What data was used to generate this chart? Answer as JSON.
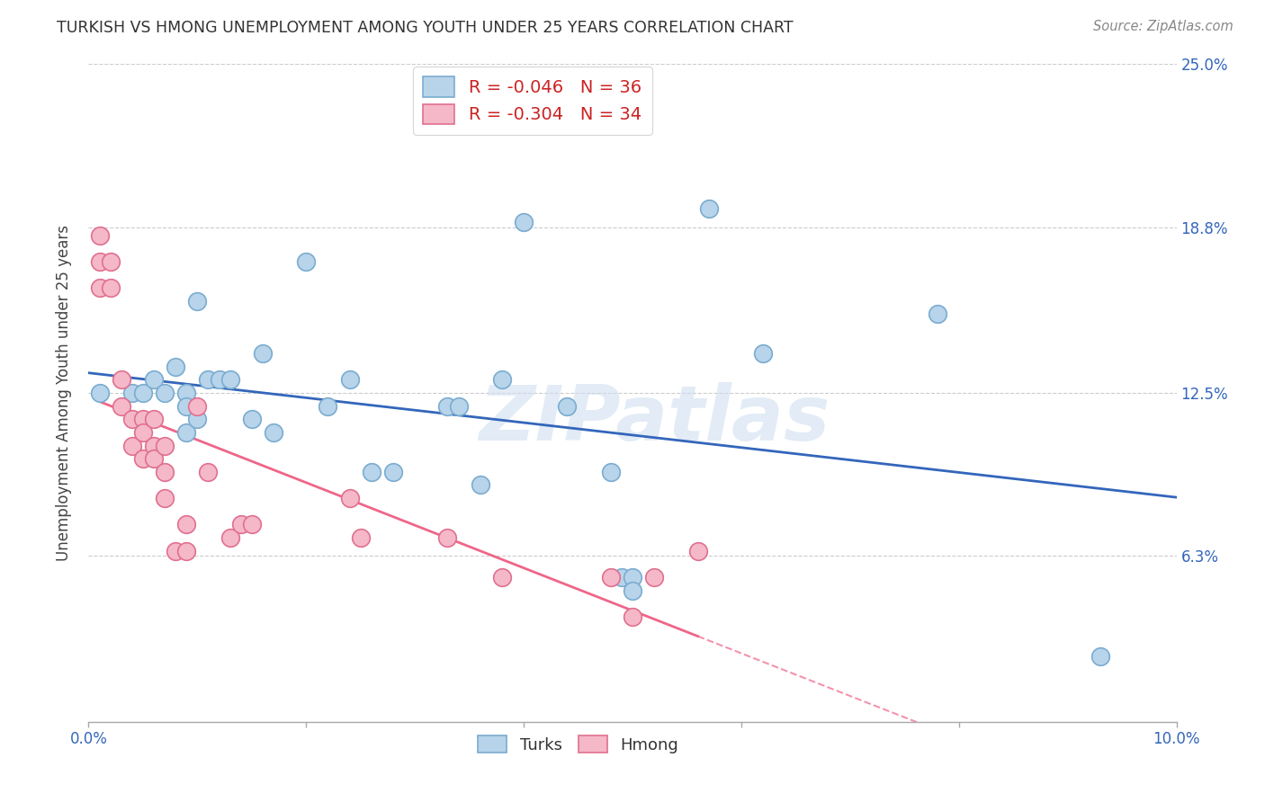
{
  "title": "TURKISH VS HMONG UNEMPLOYMENT AMONG YOUTH UNDER 25 YEARS CORRELATION CHART",
  "source": "Source: ZipAtlas.com",
  "ylabel": "Unemployment Among Youth under 25 years",
  "xlim": [
    0.0,
    0.1
  ],
  "ylim": [
    0.0,
    0.25
  ],
  "xtick_positions": [
    0.0,
    0.02,
    0.04,
    0.06,
    0.08,
    0.1
  ],
  "ytick_positions": [
    0.0,
    0.063,
    0.125,
    0.188,
    0.25
  ],
  "yticklabels_right": [
    "",
    "6.3%",
    "12.5%",
    "18.8%",
    "25.0%"
  ],
  "turks_R": "-0.046",
  "turks_N": "36",
  "hmong_R": "-0.304",
  "hmong_N": "34",
  "turks_color": "#b8d4ea",
  "turks_edge": "#7aacd0",
  "hmong_color": "#f5b8c8",
  "hmong_edge": "#e07090",
  "turks_line_color": "#3366bb",
  "hmong_line_color": "#ee6688",
  "watermark": "ZIPatlas",
  "turks_x": [
    0.001,
    0.004,
    0.005,
    0.006,
    0.007,
    0.008,
    0.009,
    0.009,
    0.009,
    0.01,
    0.01,
    0.011,
    0.012,
    0.013,
    0.015,
    0.016,
    0.017,
    0.02,
    0.022,
    0.024,
    0.026,
    0.028,
    0.033,
    0.034,
    0.036,
    0.038,
    0.04,
    0.044,
    0.048,
    0.049,
    0.05,
    0.05,
    0.057,
    0.062,
    0.078,
    0.093
  ],
  "turks_y": [
    0.125,
    0.125,
    0.125,
    0.13,
    0.125,
    0.135,
    0.125,
    0.12,
    0.11,
    0.16,
    0.115,
    0.13,
    0.13,
    0.13,
    0.115,
    0.14,
    0.11,
    0.175,
    0.12,
    0.13,
    0.095,
    0.095,
    0.12,
    0.12,
    0.09,
    0.13,
    0.19,
    0.12,
    0.095,
    0.055,
    0.055,
    0.05,
    0.195,
    0.14,
    0.155,
    0.025
  ],
  "hmong_x": [
    0.001,
    0.001,
    0.001,
    0.002,
    0.002,
    0.003,
    0.003,
    0.004,
    0.004,
    0.005,
    0.005,
    0.005,
    0.006,
    0.006,
    0.006,
    0.007,
    0.007,
    0.007,
    0.008,
    0.009,
    0.009,
    0.01,
    0.011,
    0.013,
    0.014,
    0.015,
    0.024,
    0.025,
    0.033,
    0.038,
    0.048,
    0.05,
    0.052,
    0.056
  ],
  "hmong_y": [
    0.185,
    0.175,
    0.165,
    0.175,
    0.165,
    0.13,
    0.12,
    0.115,
    0.105,
    0.115,
    0.11,
    0.1,
    0.115,
    0.105,
    0.1,
    0.105,
    0.095,
    0.085,
    0.065,
    0.075,
    0.065,
    0.12,
    0.095,
    0.07,
    0.075,
    0.075,
    0.085,
    0.07,
    0.07,
    0.055,
    0.055,
    0.04,
    0.055,
    0.065
  ]
}
